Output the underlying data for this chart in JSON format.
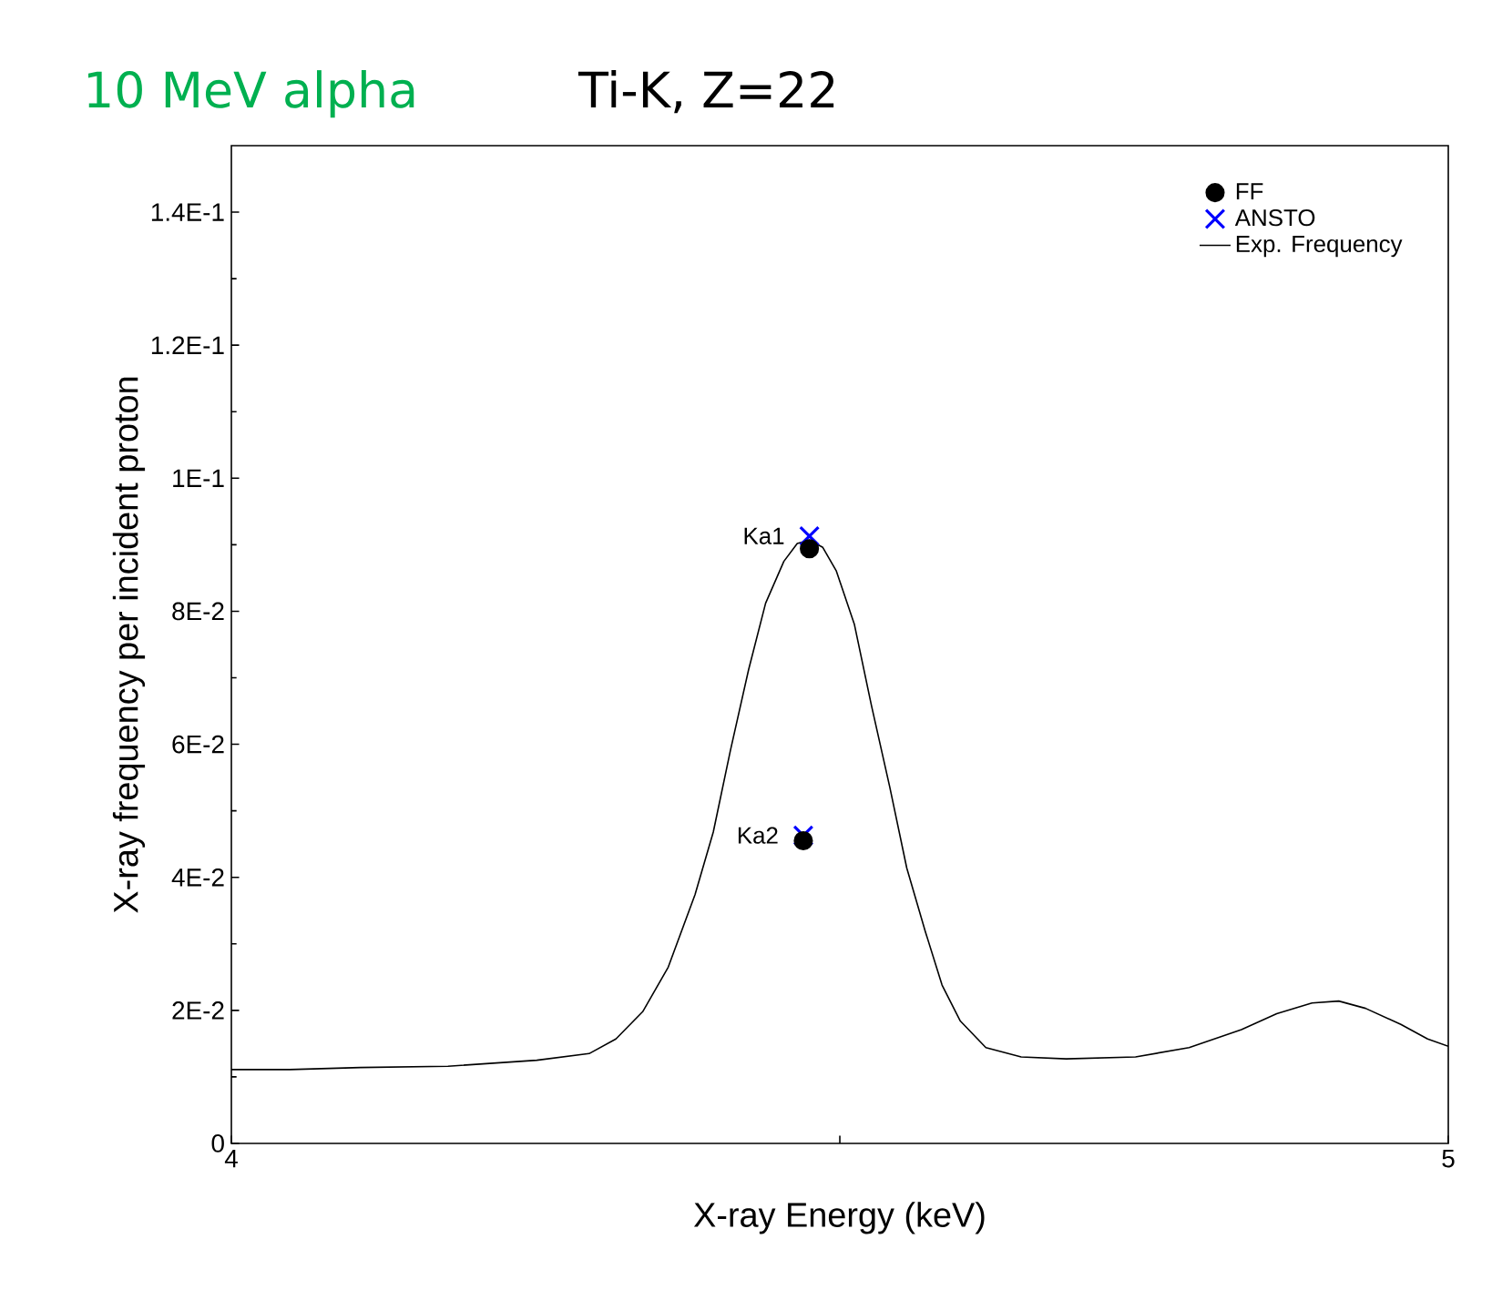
{
  "chart_data": {
    "type": "line",
    "title": "Ti-K, Z=22",
    "subtitle": "10 MeV alpha",
    "xlabel": "X-ray Energy (keV)",
    "ylabel": "X-ray frequency per incident proton",
    "xlim": [
      4,
      5
    ],
    "ylim": [
      0,
      0.15
    ],
    "xticks": [
      4,
      {
        "value": 4.5,
        "label": null
      },
      5
    ],
    "yticks": [
      {
        "value": 0,
        "label": "0"
      },
      {
        "value": 0.02,
        "label": "2E-2"
      },
      {
        "value": 0.04,
        "label": "4E-2"
      },
      {
        "value": 0.06,
        "label": "6E-2"
      },
      {
        "value": 0.08,
        "label": "8E-2"
      },
      {
        "value": 0.1,
        "label": "1E-1"
      },
      {
        "value": 0.12,
        "label": "1.2E-1"
      },
      {
        "value": 0.14,
        "label": "1.4E-1"
      }
    ],
    "legend": "top right",
    "series": [
      {
        "name": "FF",
        "type": "scatter",
        "marker": "circle",
        "color": "#000000",
        "x": [
          4.475,
          4.47
        ],
        "values": [
          0.0894,
          0.0455
        ]
      },
      {
        "name": "ANSTO",
        "type": "scatter",
        "marker": "cross",
        "color": "#0000ff",
        "x": [
          4.475,
          4.47
        ],
        "values": [
          0.0913,
          0.0463
        ]
      },
      {
        "name": "Exp. Frequency",
        "marker": "none",
        "color": "#000000",
        "x": [
          4.0,
          4.048,
          4.106,
          4.178,
          4.251,
          4.294,
          4.316,
          4.338,
          4.359,
          4.381,
          4.396,
          4.41,
          4.425,
          4.439,
          4.454,
          4.465,
          4.475,
          4.486,
          4.497,
          4.512,
          4.526,
          4.541,
          4.555,
          4.57,
          4.584,
          4.599,
          4.62,
          4.649,
          4.686,
          4.743,
          4.787,
          4.83,
          4.859,
          4.888,
          4.91,
          4.932,
          4.961,
          4.983,
          5.0
        ],
        "values": [
          0.0111,
          0.0111,
          0.0114,
          0.0116,
          0.0125,
          0.0135,
          0.0157,
          0.0198,
          0.0265,
          0.0374,
          0.0468,
          0.059,
          0.0712,
          0.0812,
          0.0875,
          0.0902,
          0.0907,
          0.0896,
          0.0861,
          0.078,
          0.0658,
          0.0536,
          0.0414,
          0.032,
          0.0238,
          0.0184,
          0.0144,
          0.013,
          0.0127,
          0.013,
          0.0144,
          0.0171,
          0.0195,
          0.0211,
          0.0214,
          0.0203,
          0.0179,
          0.0157,
          0.0146
        ]
      }
    ],
    "annotations": [
      {
        "text": "Ka1",
        "x": 4.475,
        "y": 0.0913
      },
      {
        "text": "Ka2",
        "x": 4.47,
        "y": 0.0463
      }
    ]
  }
}
